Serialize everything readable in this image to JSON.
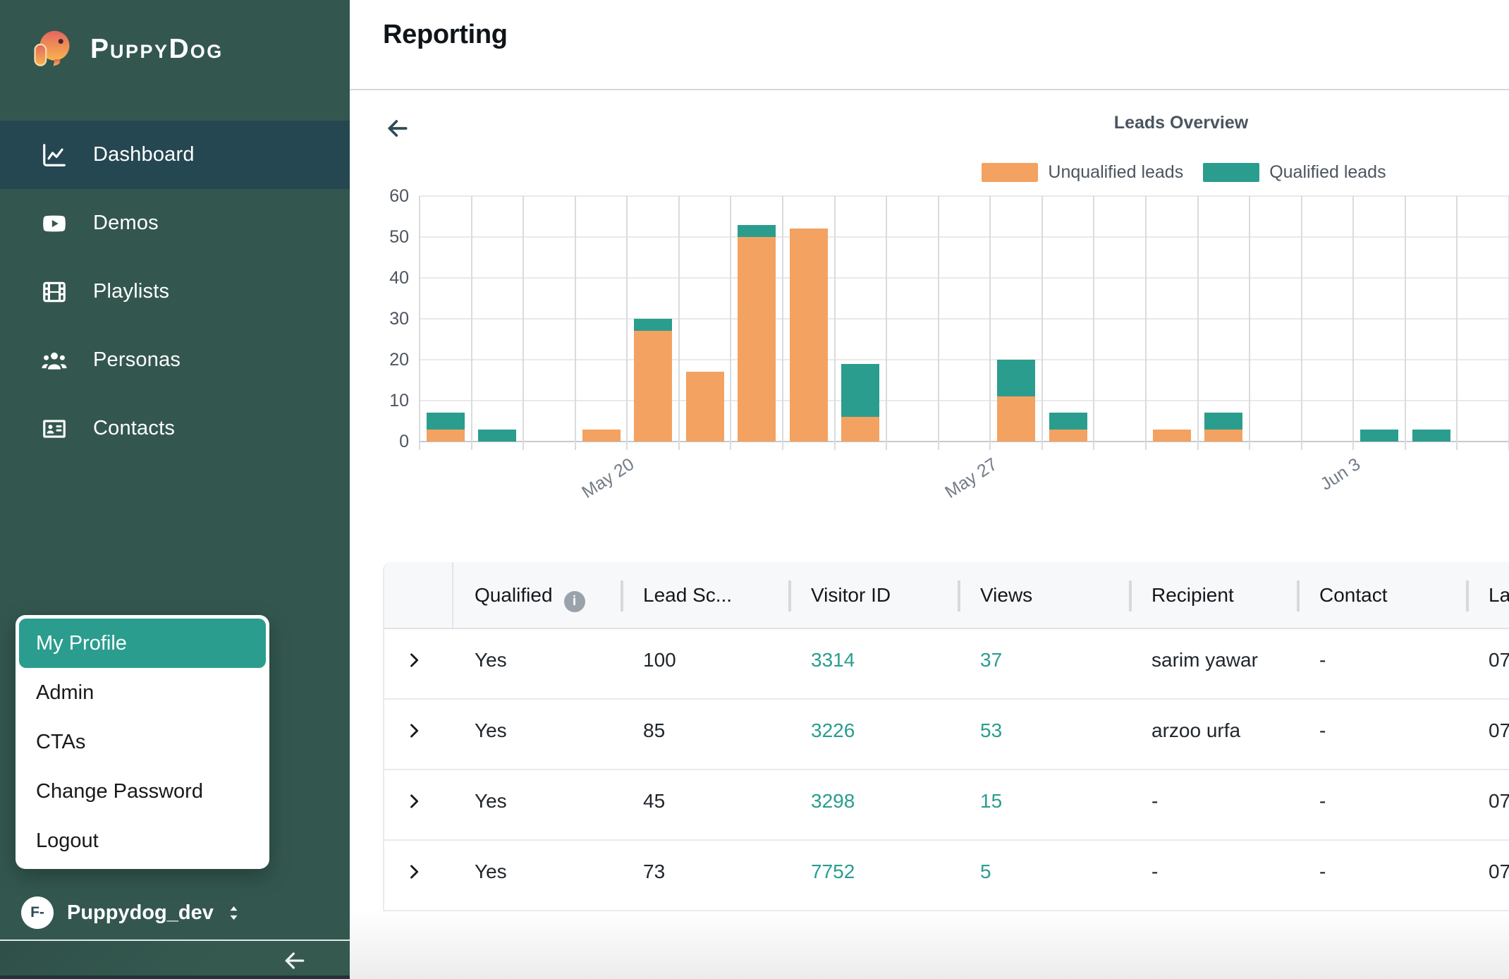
{
  "brand": {
    "name": "PuppyDog"
  },
  "header": {
    "title": "Reporting"
  },
  "sidebar": {
    "items": [
      {
        "label": "Dashboard",
        "icon": "chart-line-icon",
        "active": true
      },
      {
        "label": "Demos",
        "icon": "youtube-icon",
        "active": false
      },
      {
        "label": "Playlists",
        "icon": "film-icon",
        "active": false
      },
      {
        "label": "Personas",
        "icon": "users-icon",
        "active": false
      },
      {
        "label": "Contacts",
        "icon": "id-card-icon",
        "active": false
      }
    ],
    "menu": {
      "items": [
        {
          "label": "My Profile",
          "active": true
        },
        {
          "label": "Admin",
          "active": false
        },
        {
          "label": "CTAs",
          "active": false
        },
        {
          "label": "Change Password",
          "active": false
        },
        {
          "label": "Logout",
          "active": false
        }
      ]
    },
    "user": {
      "initials": "F-",
      "name": "Puppydog_dev"
    }
  },
  "chart_data": {
    "type": "bar",
    "stacked": true,
    "title": "Leads Overview",
    "legend_position": "top",
    "grid": true,
    "ylim": [
      0,
      60
    ],
    "y_ticks": [
      0,
      10,
      20,
      30,
      40,
      50,
      60
    ],
    "slots": 21,
    "x_tick_labels": [
      {
        "label": "May 20",
        "slot": 4
      },
      {
        "label": "May 27",
        "slot": 11
      },
      {
        "label": "Jun 3",
        "slot": 18
      }
    ],
    "series": [
      {
        "name": "Unqualified leads",
        "color": "#F3A261",
        "values": [
          3,
          0,
          0,
          3,
          27,
          17,
          50,
          52,
          6,
          0,
          0,
          11,
          3,
          0,
          3,
          3,
          0,
          0,
          0,
          0,
          0
        ]
      },
      {
        "name": "Qualified leads",
        "color": "#2A9D8F",
        "values": [
          4,
          3,
          0,
          0,
          3,
          0,
          3,
          0,
          13,
          0,
          0,
          9,
          4,
          0,
          0,
          4,
          0,
          0,
          3,
          3,
          0
        ]
      }
    ]
  },
  "table": {
    "columns": [
      {
        "key": "qualified",
        "label": "Qualified",
        "info": true
      },
      {
        "key": "lead_score",
        "label": "Lead Sc..."
      },
      {
        "key": "visitor_id",
        "label": "Visitor ID",
        "accent": true
      },
      {
        "key": "views",
        "label": "Views",
        "accent": true
      },
      {
        "key": "recipient",
        "label": "Recipient"
      },
      {
        "key": "contact",
        "label": "Contact"
      },
      {
        "key": "last",
        "label": "La"
      }
    ],
    "rows": [
      {
        "qualified": "Yes",
        "lead_score": "100",
        "visitor_id": "3314",
        "views": "37",
        "recipient": "sarim yawar",
        "contact": "-",
        "last": "07"
      },
      {
        "qualified": "Yes",
        "lead_score": "85",
        "visitor_id": "3226",
        "views": "53",
        "recipient": "arzoo urfa",
        "contact": "-",
        "last": "07"
      },
      {
        "qualified": "Yes",
        "lead_score": "45",
        "visitor_id": "3298",
        "views": "15",
        "recipient": "-",
        "contact": "-",
        "last": "07"
      },
      {
        "qualified": "Yes",
        "lead_score": "73",
        "visitor_id": "7752",
        "views": "5",
        "recipient": "-",
        "contact": "-",
        "last": "07"
      }
    ]
  },
  "colors": {
    "accent_teal": "#2A9D8F",
    "accent_orange": "#F3A261",
    "sidebar_bg": "#33574F",
    "sidebar_active": "#254752"
  }
}
